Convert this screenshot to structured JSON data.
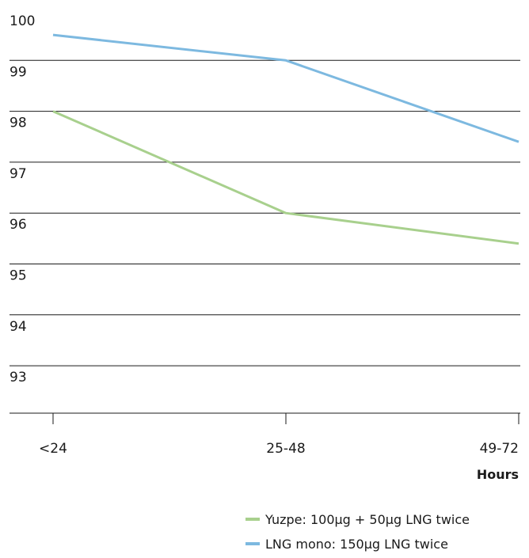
{
  "chart_data": {
    "type": "line",
    "categories": [
      "<24",
      "25-48",
      "49-72"
    ],
    "y_ticks": [
      "100",
      "99",
      "98",
      "97",
      "96",
      "95",
      "94",
      "93"
    ],
    "ylim": [
      92,
      100
    ],
    "xlabel": "Hours",
    "ylabel": "",
    "title": "",
    "grid": true,
    "legend_position": "bottom-right",
    "series": [
      {
        "name": "Yuzpe: 100µg + 50µg LNG twice",
        "color": "#a8d08d",
        "values": [
          98.0,
          96.0,
          95.4
        ]
      },
      {
        "name": "LNG mono: 150µg LNG twice",
        "color": "#7db9e0",
        "values": [
          99.5,
          99.0,
          97.4
        ]
      }
    ]
  }
}
